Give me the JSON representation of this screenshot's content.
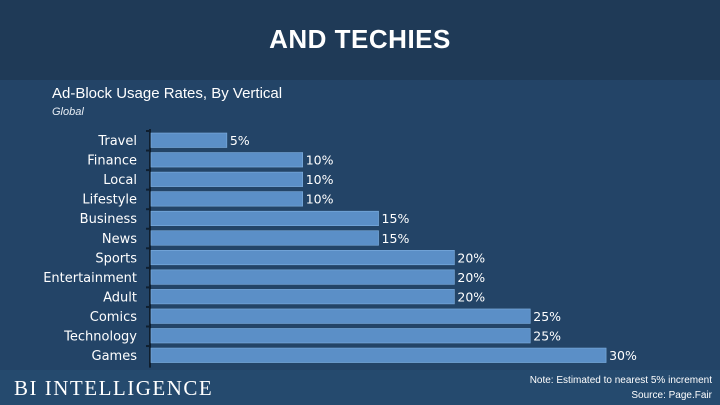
{
  "header": {
    "title": "AND TECHIES"
  },
  "footer": {
    "brand": "BI INTELLIGENCE",
    "note": "Note: Estimated to nearest 5% increment",
    "source": "Source: Page.Fair"
  },
  "colors": {
    "background": "#254a6e",
    "bar": "#5b8fc7",
    "bar_edge": "#7fb0e0"
  },
  "chart_data": {
    "type": "bar",
    "orientation": "horizontal",
    "title": "Ad-Block Usage Rates, By Vertical",
    "subtitle": "Global",
    "categories": [
      "Travel",
      "Finance",
      "Local",
      "Lifestyle",
      "Business",
      "News",
      "Sports",
      "Entertainment",
      "Adult",
      "Comics",
      "Technology",
      "Games"
    ],
    "values": [
      5,
      10,
      10,
      10,
      15,
      15,
      20,
      20,
      20,
      25,
      25,
      30
    ],
    "value_labels": [
      "5%",
      "10%",
      "10%",
      "10%",
      "15%",
      "15%",
      "20%",
      "20%",
      "20%",
      "25%",
      "25%",
      "30%"
    ],
    "xlim": [
      0,
      30
    ],
    "xlabel": "",
    "ylabel": ""
  }
}
